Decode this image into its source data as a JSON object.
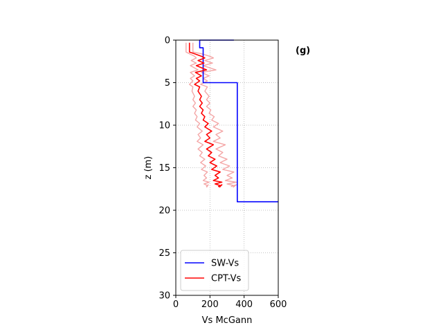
{
  "chart_data": {
    "type": "line",
    "panel_label": "(g)",
    "xlabel": "Vs McGann",
    "ylabel": "z (m)",
    "xlim": [
      0,
      600
    ],
    "ylim": [
      0,
      30
    ],
    "y_inverted": true,
    "x_ticks": [
      0,
      200,
      400,
      600
    ],
    "y_ticks": [
      0,
      5,
      10,
      15,
      20,
      25,
      30
    ],
    "grid": true,
    "legend_position": "lower-left",
    "series": [
      {
        "name": "SW-Vs",
        "color": "#0000ff",
        "style": "solid",
        "x": [
          340,
          140,
          140,
          160,
          160,
          360,
          360,
          600
        ],
        "y": [
          0,
          0,
          0.9,
          0.9,
          5.0,
          5.0,
          19.0,
          19.0
        ]
      },
      {
        "name": "CPT-Vs",
        "color": "#ff0000",
        "style": "solid",
        "x": [
          80,
          80,
          110,
          150,
          170,
          130,
          165,
          120,
          180,
          115,
          150,
          120,
          140,
          110,
          140,
          130,
          150,
          140,
          155,
          140,
          160,
          150,
          170,
          160,
          190,
          170,
          210,
          180,
          200,
          170,
          220,
          180,
          210,
          190,
          230,
          200,
          240,
          210,
          260,
          230,
          250,
          220,
          270,
          230,
          260,
          250,
          270,
          255
        ],
        "y": [
          0.3,
          1.4,
          1.6,
          1.9,
          2.1,
          2.4,
          2.7,
          3.0,
          3.5,
          3.8,
          4.2,
          4.5,
          4.8,
          5.2,
          5.5,
          6.0,
          6.6,
          7.0,
          7.4,
          7.8,
          8.2,
          8.6,
          9.0,
          9.4,
          9.8,
          10.2,
          10.7,
          11.1,
          11.5,
          11.9,
          12.3,
          12.8,
          13.2,
          13.6,
          14.0,
          14.4,
          14.8,
          15.2,
          15.5,
          15.9,
          16.2,
          16.5,
          16.7,
          16.9,
          17.1,
          17.2,
          17.0,
          17.3
        ]
      },
      {
        "name": "",
        "color": "#f4a6a6",
        "style": "solid",
        "x": [
          60,
          60,
          80,
          110,
          120,
          90,
          120,
          85,
          130,
          85,
          110,
          85,
          100,
          80,
          100,
          95,
          110,
          100,
          115,
          100,
          120,
          110,
          125,
          115,
          140,
          125,
          155,
          130,
          145,
          125,
          160,
          130,
          155,
          140,
          170,
          145,
          175,
          150,
          185,
          165,
          180,
          160,
          195,
          165,
          185,
          180,
          190,
          180
        ],
        "y": [
          0.3,
          1.4,
          1.6,
          1.9,
          2.1,
          2.4,
          2.7,
          3.0,
          3.5,
          3.8,
          4.2,
          4.5,
          4.8,
          5.2,
          5.5,
          6.0,
          6.6,
          7.0,
          7.4,
          7.8,
          8.2,
          8.6,
          9.0,
          9.4,
          9.8,
          10.2,
          10.7,
          11.1,
          11.5,
          11.9,
          12.3,
          12.8,
          13.2,
          13.6,
          14.0,
          14.4,
          14.8,
          15.2,
          15.5,
          15.9,
          16.2,
          16.5,
          16.7,
          16.9,
          17.1,
          17.2,
          17.0,
          17.3
        ]
      },
      {
        "name": "",
        "color": "#f4a6a6",
        "style": "solid",
        "x": [
          100,
          100,
          150,
          200,
          220,
          170,
          215,
          160,
          235,
          150,
          195,
          160,
          185,
          145,
          185,
          170,
          195,
          180,
          200,
          180,
          205,
          195,
          225,
          210,
          250,
          220,
          275,
          235,
          260,
          220,
          290,
          235,
          275,
          250,
          300,
          260,
          315,
          275,
          340,
          300,
          330,
          290,
          355,
          300,
          340,
          325,
          355,
          335
        ],
        "y": [
          0.3,
          1.4,
          1.6,
          1.9,
          2.1,
          2.4,
          2.7,
          3.0,
          3.5,
          3.8,
          4.2,
          4.5,
          4.8,
          5.2,
          5.5,
          6.0,
          6.6,
          7.0,
          7.4,
          7.8,
          8.2,
          8.6,
          9.0,
          9.4,
          9.8,
          10.2,
          10.7,
          11.1,
          11.5,
          11.9,
          12.3,
          12.8,
          13.2,
          13.6,
          14.0,
          14.4,
          14.8,
          15.2,
          15.5,
          15.9,
          16.2,
          16.5,
          16.7,
          16.9,
          17.1,
          17.2,
          17.0,
          17.3
        ]
      }
    ]
  }
}
